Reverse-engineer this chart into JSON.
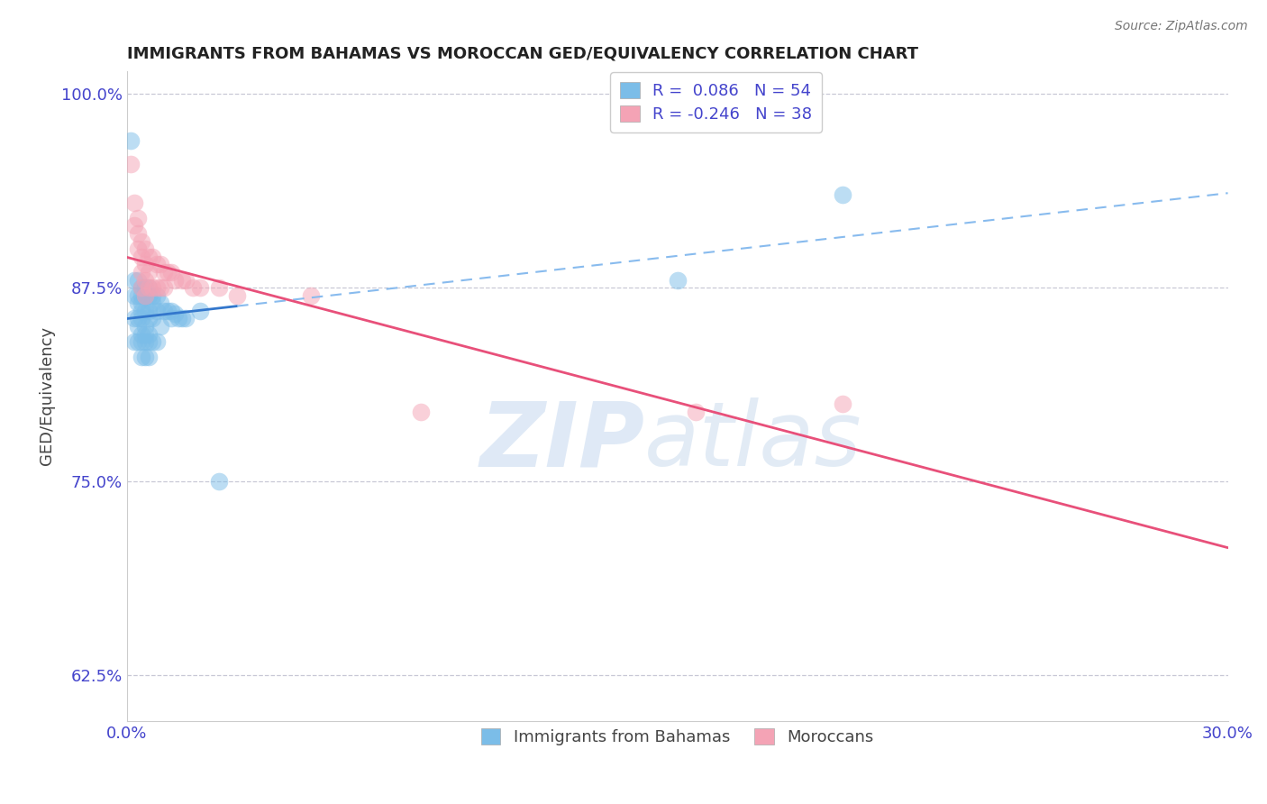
{
  "title": "IMMIGRANTS FROM BAHAMAS VS MOROCCAN GED/EQUIVALENCY CORRELATION CHART",
  "source_text": "Source: ZipAtlas.com",
  "ylabel": "GED/Equivalency",
  "legend_label1": "Immigrants from Bahamas",
  "legend_label2": "Moroccans",
  "R1": 0.086,
  "N1": 54,
  "R2": -0.246,
  "N2": 38,
  "xlim": [
    0.0,
    0.3
  ],
  "ylim": [
    0.595,
    1.015
  ],
  "xticks": [
    0.0,
    0.05,
    0.1,
    0.15,
    0.2,
    0.25,
    0.3
  ],
  "xticklabels": [
    "0.0%",
    "",
    "",
    "",
    "",
    "",
    "30.0%"
  ],
  "yticks": [
    0.625,
    0.75,
    0.875,
    1.0
  ],
  "yticklabels": [
    "62.5%",
    "75.0%",
    "87.5%",
    "100.0%"
  ],
  "color_blue": "#7bbde8",
  "color_pink": "#f4a3b5",
  "color_line_blue": "#3377cc",
  "color_line_pink": "#e8507a",
  "color_dash": "#88bbee",
  "color_axis_label": "#4444cc",
  "watermark_zip": "ZIP",
  "watermark_atlas": "atlas",
  "blue_x": [
    0.001,
    0.002,
    0.002,
    0.002,
    0.002,
    0.003,
    0.003,
    0.003,
    0.003,
    0.003,
    0.003,
    0.004,
    0.004,
    0.004,
    0.004,
    0.004,
    0.004,
    0.004,
    0.004,
    0.005,
    0.005,
    0.005,
    0.005,
    0.005,
    0.005,
    0.005,
    0.006,
    0.006,
    0.006,
    0.006,
    0.006,
    0.006,
    0.006,
    0.007,
    0.007,
    0.007,
    0.007,
    0.008,
    0.008,
    0.008,
    0.009,
    0.009,
    0.01,
    0.011,
    0.012,
    0.012,
    0.013,
    0.014,
    0.015,
    0.016,
    0.02,
    0.025,
    0.15,
    0.195
  ],
  "blue_y": [
    0.97,
    0.88,
    0.87,
    0.855,
    0.84,
    0.88,
    0.87,
    0.865,
    0.855,
    0.85,
    0.84,
    0.875,
    0.87,
    0.865,
    0.86,
    0.855,
    0.845,
    0.84,
    0.83,
    0.875,
    0.87,
    0.86,
    0.85,
    0.845,
    0.84,
    0.83,
    0.875,
    0.87,
    0.86,
    0.855,
    0.845,
    0.84,
    0.83,
    0.87,
    0.865,
    0.855,
    0.84,
    0.87,
    0.86,
    0.84,
    0.865,
    0.85,
    0.86,
    0.86,
    0.86,
    0.855,
    0.858,
    0.855,
    0.855,
    0.855,
    0.86,
    0.75,
    0.88,
    0.935
  ],
  "pink_x": [
    0.001,
    0.002,
    0.002,
    0.003,
    0.003,
    0.003,
    0.004,
    0.004,
    0.004,
    0.004,
    0.005,
    0.005,
    0.005,
    0.005,
    0.006,
    0.006,
    0.006,
    0.007,
    0.007,
    0.008,
    0.008,
    0.009,
    0.009,
    0.01,
    0.01,
    0.011,
    0.012,
    0.013,
    0.015,
    0.016,
    0.018,
    0.02,
    0.025,
    0.03,
    0.05,
    0.08,
    0.155,
    0.195
  ],
  "pink_y": [
    0.955,
    0.93,
    0.915,
    0.92,
    0.91,
    0.9,
    0.905,
    0.895,
    0.885,
    0.875,
    0.9,
    0.89,
    0.88,
    0.87,
    0.895,
    0.885,
    0.875,
    0.895,
    0.875,
    0.89,
    0.875,
    0.89,
    0.875,
    0.885,
    0.875,
    0.885,
    0.885,
    0.88,
    0.88,
    0.88,
    0.875,
    0.875,
    0.875,
    0.87,
    0.87,
    0.795,
    0.795,
    0.8
  ]
}
